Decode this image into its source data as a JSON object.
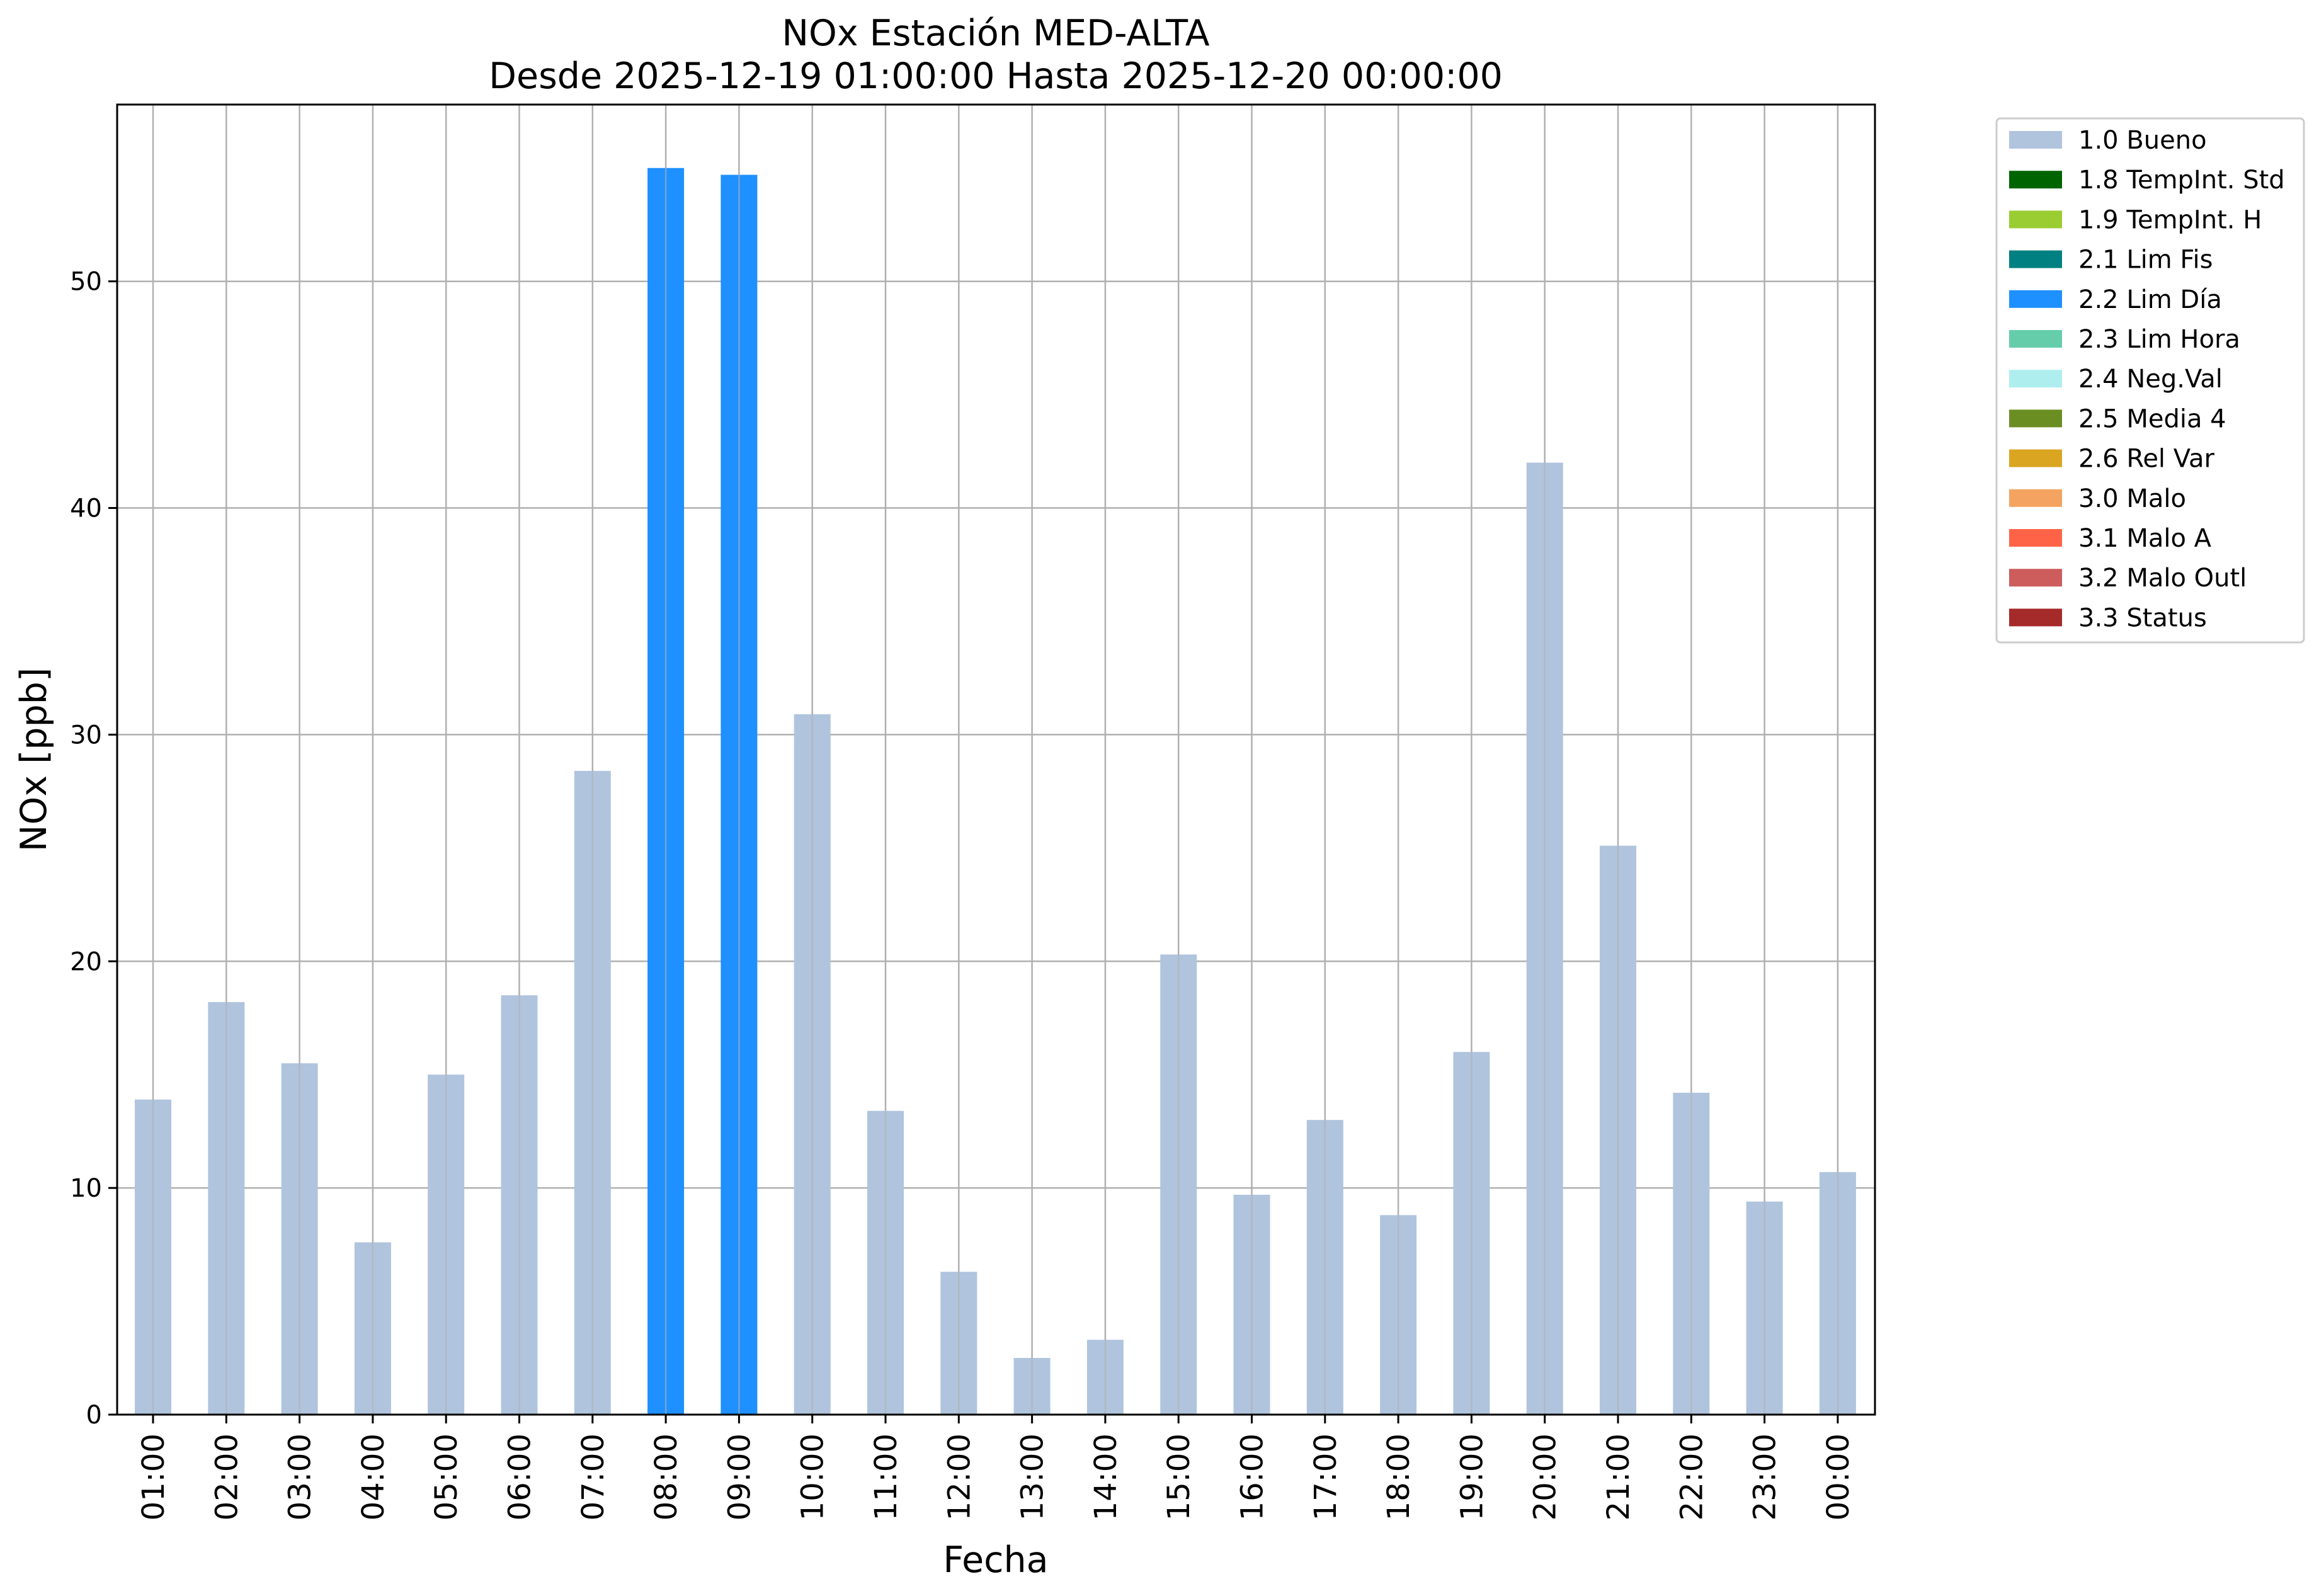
{
  "chart_data": {
    "type": "bar",
    "title": "NOx Estación MED-ALTA",
    "subtitle": "Desde 2025-12-19 01:00:00 Hasta 2025-12-20 00:00:00",
    "xlabel": "Fecha",
    "ylabel": "NOx [ppb]",
    "ylim": [
      0,
      57.8
    ],
    "yticks": [
      "0",
      "10",
      "20",
      "30",
      "40",
      "50"
    ],
    "grid": true,
    "legend_position": "outside-top-right",
    "categories": [
      "01:00",
      "02:00",
      "03:00",
      "04:00",
      "05:00",
      "06:00",
      "07:00",
      "08:00",
      "09:00",
      "10:00",
      "11:00",
      "12:00",
      "13:00",
      "14:00",
      "15:00",
      "16:00",
      "17:00",
      "18:00",
      "19:00",
      "20:00",
      "21:00",
      "22:00",
      "23:00",
      "00:00"
    ],
    "values": [
      13.9,
      18.2,
      15.5,
      7.6,
      15.0,
      18.5,
      28.4,
      55.0,
      54.7,
      30.9,
      13.4,
      6.3,
      2.5,
      3.3,
      20.3,
      9.7,
      13.0,
      8.8,
      16.0,
      42.0,
      25.1,
      14.2,
      9.4,
      10.7
    ],
    "flags": [
      "1.0 Bueno",
      "1.0 Bueno",
      "1.0 Bueno",
      "1.0 Bueno",
      "1.0 Bueno",
      "1.0 Bueno",
      "1.0 Bueno",
      "2.2 Lim Día",
      "2.2 Lim Día",
      "1.0 Bueno",
      "1.0 Bueno",
      "1.0 Bueno",
      "1.0 Bueno",
      "1.0 Bueno",
      "1.0 Bueno",
      "1.0 Bueno",
      "1.0 Bueno",
      "1.0 Bueno",
      "1.0 Bueno",
      "1.0 Bueno",
      "1.0 Bueno",
      "1.0 Bueno",
      "1.0 Bueno",
      "1.0 Bueno"
    ],
    "legend": [
      {
        "label": "1.0 Bueno",
        "color": "#b0c4de"
      },
      {
        "label": "1.8 TempInt. Std",
        "color": "#006400"
      },
      {
        "label": "1.9 TempInt. H",
        "color": "#9acd32"
      },
      {
        "label": "2.1 Lim Fis",
        "color": "#008080"
      },
      {
        "label": "2.2 Lim Día",
        "color": "#1e90ff"
      },
      {
        "label": "2.3 Lim Hora",
        "color": "#66cdaa"
      },
      {
        "label": "2.4 Neg.Val",
        "color": "#afeeee"
      },
      {
        "label": "2.5 Media 4",
        "color": "#6b8e23"
      },
      {
        "label": "2.6 Rel Var",
        "color": "#daa520"
      },
      {
        "label": "3.0 Malo",
        "color": "#f4a460"
      },
      {
        "label": "3.1 Malo A",
        "color": "#ff6347"
      },
      {
        "label": "3.2 Malo Outl",
        "color": "#cd5c5c"
      },
      {
        "label": "3.3 Status",
        "color": "#a52a2a"
      }
    ]
  }
}
